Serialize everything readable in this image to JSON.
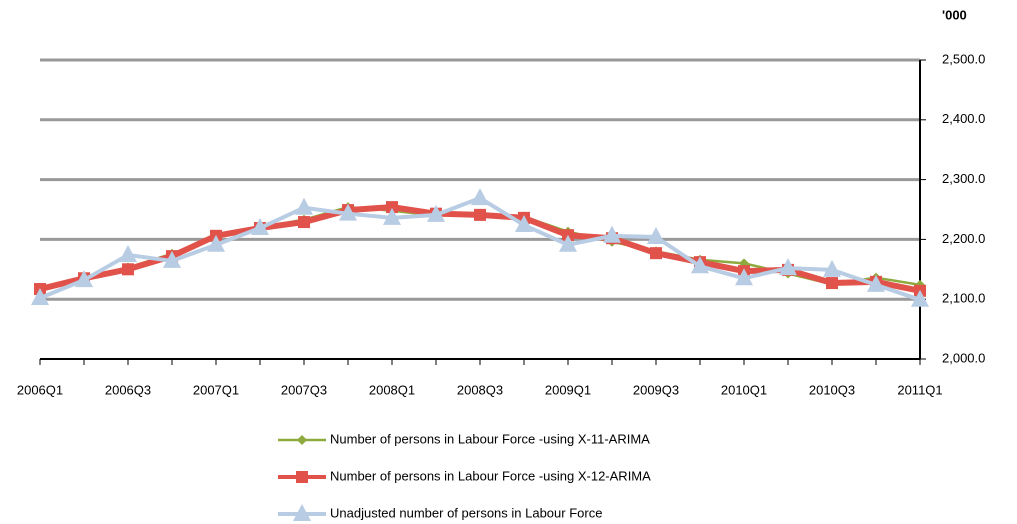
{
  "chart_data": {
    "type": "line",
    "y_axis_label": "'000",
    "categories": [
      "2006Q1",
      null,
      "2006Q3",
      null,
      "2007Q1",
      null,
      "2007Q3",
      null,
      "2008Q1",
      null,
      "2008Q3",
      null,
      "2009Q1",
      null,
      "2009Q3",
      null,
      "2010Q1",
      null,
      "2010Q3",
      null,
      "2011Q1"
    ],
    "series": [
      {
        "name": "Number of persons in Labour Force -using X-11-ARIMA",
        "color": "#8faa3c",
        "marker": "diamond",
        "values": [
          2117,
          2136,
          2153,
          2176,
          2204,
          2220,
          2233,
          2254,
          2248,
          2240,
          2243,
          2238,
          2213,
          2196,
          2180,
          2166,
          2160,
          2143,
          2125,
          2136,
          2124
        ]
      },
      {
        "name": "Number of persons in Labour Force -using X-12-ARIMA",
        "color": "#e0524a",
        "marker": "square",
        "values": [
          2117,
          2135,
          2150,
          2172,
          2206,
          2219,
          2229,
          2249,
          2254,
          2243,
          2241,
          2236,
          2207,
          2202,
          2177,
          2162,
          2147,
          2149,
          2127,
          2129,
          2114
        ]
      },
      {
        "name": "Unadjusted number of persons in Labour Force",
        "color": "#b8cce4",
        "marker": "triangle",
        "values": [
          2102,
          2132,
          2174,
          2164,
          2191,
          2219,
          2253,
          2243,
          2236,
          2241,
          2269,
          2224,
          2191,
          2206,
          2204,
          2155,
          2135,
          2152,
          2149,
          2124,
          2099
        ]
      }
    ],
    "ylim": [
      2000,
      2500
    ],
    "yticks": [
      {
        "value": 2000,
        "label": "2,000.0"
      },
      {
        "value": 2100,
        "label": "2,100.0"
      },
      {
        "value": 2200,
        "label": "2,200.0"
      },
      {
        "value": 2300,
        "label": "2,300.0"
      },
      {
        "value": 2400,
        "label": "2,400.0"
      },
      {
        "value": 2500,
        "label": "2,500.0"
      }
    ],
    "grid": true
  }
}
